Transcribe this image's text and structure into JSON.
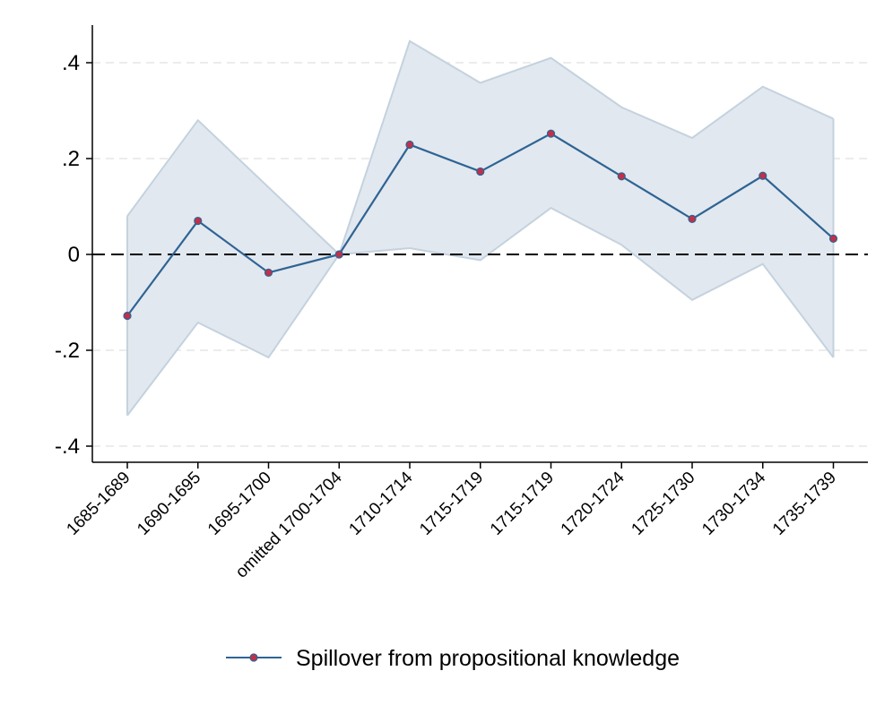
{
  "chart_data": {
    "type": "line",
    "title": "",
    "xlabel": "",
    "ylabel": "",
    "categories": [
      "1685-1689",
      "1690-1695",
      "1695-1700",
      "omitted 1700-1704",
      "1710-1714",
      "1715-1719",
      "1715-1719",
      "1720-1724",
      "1725-1730",
      "1730-1734",
      "1735-1739"
    ],
    "series": [
      {
        "name": "Spillover from propositional knowledge",
        "values": [
          -0.128,
          0.07,
          -0.038,
          0.0,
          0.229,
          0.173,
          0.252,
          0.163,
          0.074,
          0.164,
          0.033
        ],
        "ci_upper": [
          0.08,
          0.28,
          0.14,
          0.0,
          0.445,
          0.358,
          0.41,
          0.307,
          0.243,
          0.35,
          0.283
        ],
        "ci_lower": [
          -0.336,
          -0.142,
          -0.215,
          0.0,
          0.013,
          -0.012,
          0.097,
          0.02,
          -0.095,
          -0.02,
          -0.215
        ],
        "color": "#2e6494",
        "marker_color": "#c0304a"
      }
    ],
    "yticks": [
      ".4",
      ".2",
      "0",
      "-.2",
      "-.4"
    ],
    "ytick_values": [
      0.4,
      0.2,
      0,
      -0.2,
      -0.4
    ],
    "ylim": [
      -0.43,
      0.48
    ],
    "band_fill": "#e2e8ef",
    "band_stroke": "#c4d2de",
    "grid": true,
    "reference_line": 0,
    "legend_position": "bottom"
  }
}
